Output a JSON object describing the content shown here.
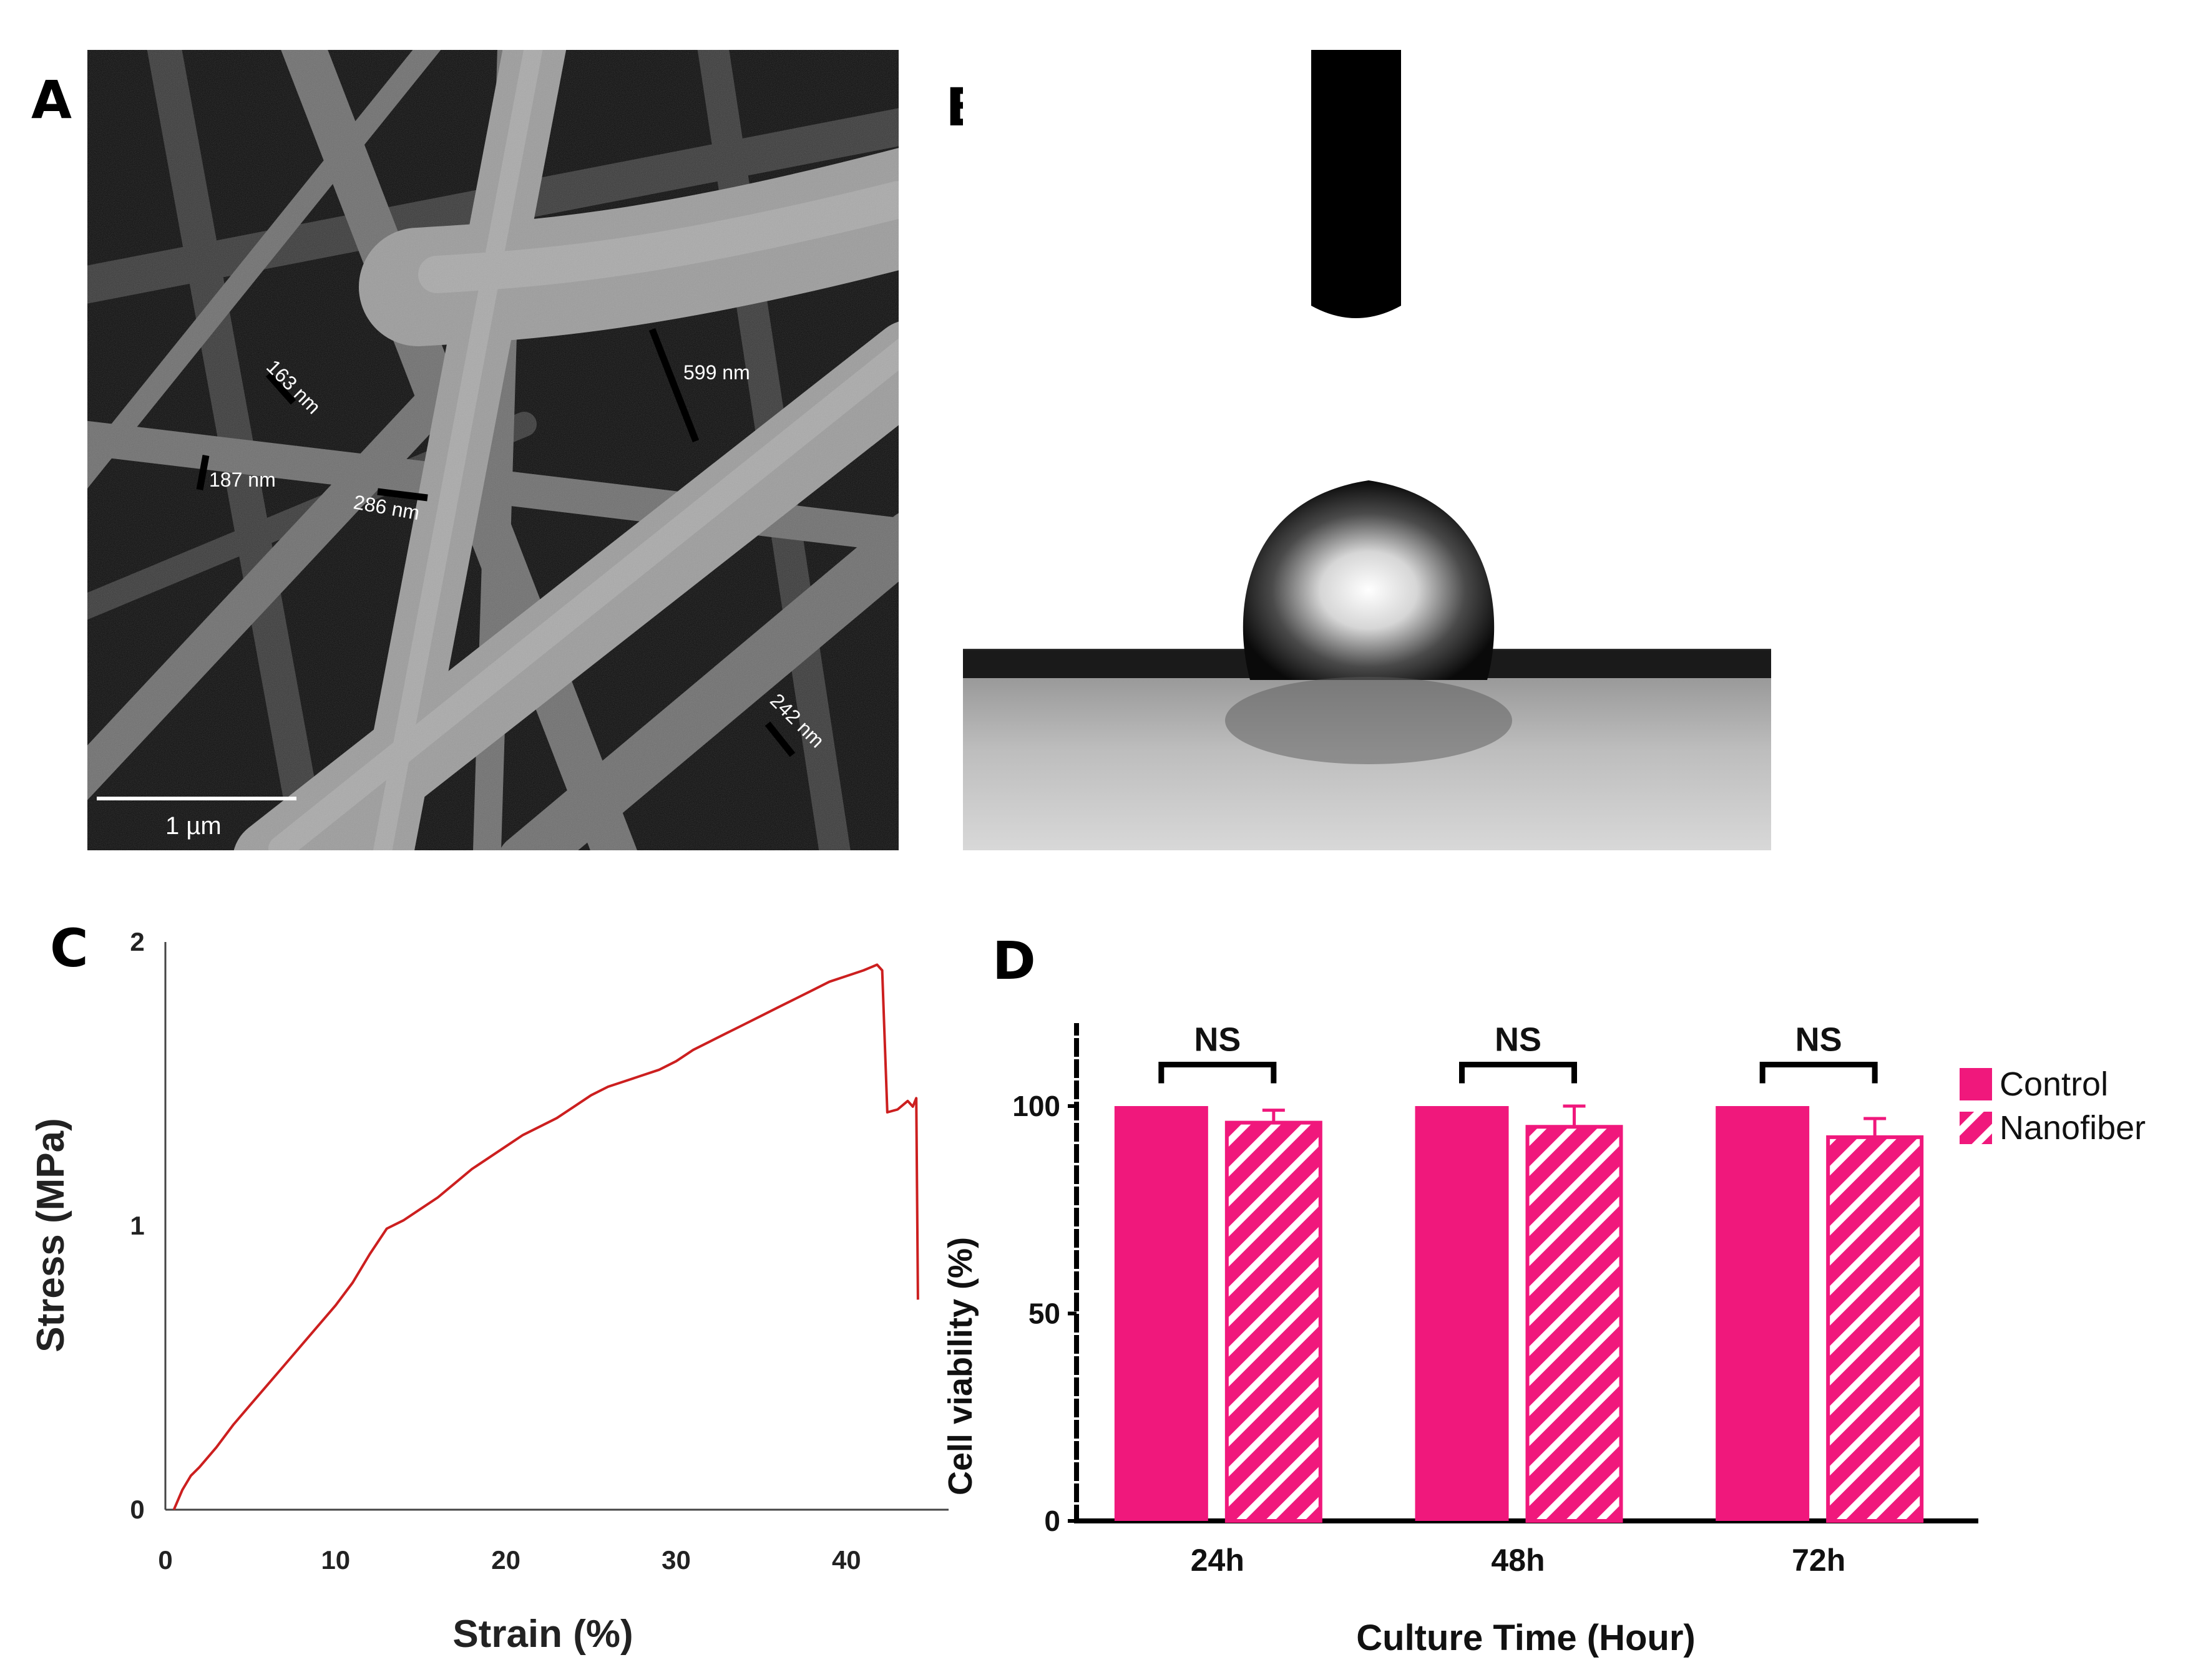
{
  "panels": {
    "a": {
      "letter": "A",
      "scale_bar_label": "1 µm",
      "measurements": [
        "163 nm",
        "187 nm",
        "286 nm",
        "599 nm",
        "242 nm"
      ]
    },
    "b": {
      "letter": "B"
    },
    "c": {
      "letter": "C"
    },
    "d": {
      "letter": "D"
    }
  },
  "chart_data": [
    {
      "type": "line",
      "panel": "C",
      "title": "",
      "xlabel": "Strain (%)",
      "ylabel": "Stress (MPa)",
      "xlim": [
        0,
        46
      ],
      "ylim": [
        0,
        2
      ],
      "xticks": [
        0,
        10,
        20,
        30,
        40
      ],
      "yticks": [
        0,
        1,
        2
      ],
      "color": "#cc1f1f",
      "series": [
        {
          "name": "stress-strain",
          "x": [
            0.5,
            1,
            1.5,
            2,
            3,
            4,
            5,
            6,
            7,
            8,
            9,
            10,
            11,
            12,
            13,
            14,
            15,
            16,
            17,
            18,
            19,
            20,
            21,
            22,
            23,
            24,
            25,
            26,
            27,
            28,
            29,
            30,
            31,
            32,
            33,
            34,
            35,
            36,
            37,
            38,
            39,
            40,
            41,
            41.8,
            42.1,
            42.4,
            43,
            43.6,
            43.9,
            44.1,
            44.2
          ],
          "y": [
            0,
            0.07,
            0.12,
            0.15,
            0.22,
            0.3,
            0.37,
            0.44,
            0.51,
            0.58,
            0.65,
            0.72,
            0.8,
            0.9,
            0.99,
            1.02,
            1.06,
            1.1,
            1.15,
            1.2,
            1.24,
            1.28,
            1.32,
            1.35,
            1.38,
            1.42,
            1.46,
            1.49,
            1.51,
            1.53,
            1.55,
            1.58,
            1.62,
            1.65,
            1.68,
            1.71,
            1.74,
            1.77,
            1.8,
            1.83,
            1.86,
            1.88,
            1.9,
            1.92,
            1.9,
            1.4,
            1.41,
            1.44,
            1.42,
            1.45,
            0.74
          ]
        }
      ]
    },
    {
      "type": "bar",
      "panel": "D",
      "title": "",
      "xlabel": "Culture Time (Hour)",
      "ylabel": "Cell viability (%)",
      "ylim": [
        0,
        120
      ],
      "yticks": [
        0,
        50,
        100
      ],
      "categories": [
        "24h",
        "48h",
        "72h"
      ],
      "series": [
        {
          "name": "Control",
          "values": [
            100,
            100,
            100
          ],
          "errors": [
            0,
            0,
            0
          ],
          "color": "#f0187c",
          "pattern": "solid"
        },
        {
          "name": "Nanofiber",
          "values": [
            96,
            95,
            92.5
          ],
          "errors": [
            3,
            5,
            4.5
          ],
          "color": "#f0187c",
          "pattern": "hatched"
        }
      ],
      "significance": [
        "NS",
        "NS",
        "NS"
      ],
      "legend_position": "top-right"
    }
  ]
}
